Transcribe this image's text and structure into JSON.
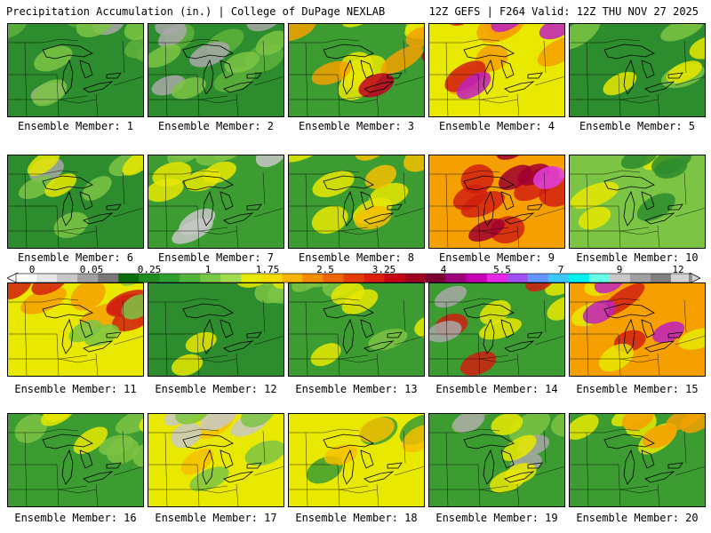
{
  "header": {
    "title": "Precipitation Accumulation (in.) | College of DuPage NEXLAB",
    "run_info": "12Z GEFS | F264 Valid: 12Z THU NOV 27 2025"
  },
  "panels": [
    {
      "caption": "Ensemble Member: 1",
      "base": "#2d8c2d",
      "spots": [
        [
          "#5fb03c",
          0.3
        ],
        [
          "#a8a8a8",
          0.15
        ],
        [
          "#7cc444",
          0.2
        ]
      ]
    },
    {
      "caption": "Ensemble Member: 2",
      "base": "#2d8c2d",
      "spots": [
        [
          "#5fb03c",
          0.3
        ],
        [
          "#a8a8a8",
          0.2
        ],
        [
          "#7cc444",
          0.2
        ]
      ]
    },
    {
      "caption": "Ensemble Member: 3",
      "base": "#3c9c32",
      "spots": [
        [
          "#e8e800",
          0.5
        ],
        [
          "#f5a000",
          0.3
        ],
        [
          "#c00020",
          0.2
        ]
      ]
    },
    {
      "caption": "Ensemble Member: 4",
      "base": "#e8e800",
      "spots": [
        [
          "#f5a000",
          0.4
        ],
        [
          "#d02010",
          0.3
        ],
        [
          "#c020c0",
          0.15
        ]
      ]
    },
    {
      "caption": "Ensemble Member: 5",
      "base": "#2d8c2d",
      "spots": [
        [
          "#7cc444",
          0.3
        ],
        [
          "#e8e800",
          0.15
        ]
      ]
    },
    {
      "caption": "Ensemble Member: 6",
      "base": "#2d8c2d",
      "spots": [
        [
          "#a8a8a8",
          0.2
        ],
        [
          "#7cc444",
          0.3
        ],
        [
          "#e8e800",
          0.1
        ]
      ]
    },
    {
      "caption": "Ensemble Member: 7",
      "base": "#3c9c32",
      "spots": [
        [
          "#c8c8c8",
          0.25
        ],
        [
          "#7cc444",
          0.3
        ],
        [
          "#e8e800",
          0.2
        ]
      ]
    },
    {
      "caption": "Ensemble Member: 8",
      "base": "#3c9c32",
      "spots": [
        [
          "#e8e800",
          0.4
        ],
        [
          "#f5c000",
          0.2
        ]
      ]
    },
    {
      "caption": "Ensemble Member: 9",
      "base": "#f5a000",
      "spots": [
        [
          "#d02010",
          0.4
        ],
        [
          "#a00030",
          0.25
        ],
        [
          "#e040e0",
          0.15
        ]
      ]
    },
    {
      "caption": "Ensemble Member: 10",
      "base": "#7cc444",
      "spots": [
        [
          "#e8e800",
          0.4
        ],
        [
          "#2d8c2d",
          0.2
        ]
      ]
    },
    {
      "caption": "Ensemble Member: 11",
      "base": "#e8e800",
      "spots": [
        [
          "#f5a000",
          0.4
        ],
        [
          "#d02010",
          0.3
        ],
        [
          "#7cc444",
          0.2
        ]
      ]
    },
    {
      "caption": "Ensemble Member: 12",
      "base": "#2d8c2d",
      "spots": [
        [
          "#7cc444",
          0.3
        ],
        [
          "#e8e800",
          0.15
        ]
      ]
    },
    {
      "caption": "Ensemble Member: 13",
      "base": "#3c9c32",
      "spots": [
        [
          "#7cc444",
          0.3
        ],
        [
          "#e8e800",
          0.2
        ]
      ]
    },
    {
      "caption": "Ensemble Member: 14",
      "base": "#3c9c32",
      "spots": [
        [
          "#e8e800",
          0.3
        ],
        [
          "#d02010",
          0.15
        ],
        [
          "#a8a8a8",
          0.1
        ]
      ]
    },
    {
      "caption": "Ensemble Member: 15",
      "base": "#f5a000",
      "spots": [
        [
          "#d02010",
          0.4
        ],
        [
          "#e8e800",
          0.2
        ],
        [
          "#c020c0",
          0.1
        ]
      ]
    },
    {
      "caption": "Ensemble Member: 16",
      "base": "#3c9c32",
      "spots": [
        [
          "#7cc444",
          0.3
        ],
        [
          "#e8e800",
          0.15
        ]
      ]
    },
    {
      "caption": "Ensemble Member: 17",
      "base": "#e8e800",
      "spots": [
        [
          "#f5c000",
          0.3
        ],
        [
          "#c8c8c8",
          0.2
        ],
        [
          "#7cc444",
          0.2
        ]
      ]
    },
    {
      "caption": "Ensemble Member: 18",
      "base": "#e8e800",
      "spots": [
        [
          "#3c9c32",
          0.3
        ],
        [
          "#f5c000",
          0.2
        ]
      ]
    },
    {
      "caption": "Ensemble Member: 19",
      "base": "#3c9c32",
      "spots": [
        [
          "#7cc444",
          0.3
        ],
        [
          "#a8a8a8",
          0.1
        ],
        [
          "#e8e800",
          0.15
        ]
      ]
    },
    {
      "caption": "Ensemble Member: 20",
      "base": "#3c9c32",
      "spots": [
        [
          "#e8e800",
          0.4
        ],
        [
          "#f5a000",
          0.15
        ]
      ]
    }
  ],
  "legend": {
    "labels": [
      "0",
      "0.05",
      "0.25",
      "1",
      "1.75",
      "2.5",
      "3.25",
      "4",
      "5.5",
      "7",
      "9",
      "12"
    ],
    "colors": [
      "#ffffff",
      "#e6e6e6",
      "#c8c8c8",
      "#a0a0a0",
      "#787878",
      "#0a6e0a",
      "#1e8c1e",
      "#2da02d",
      "#50b43c",
      "#78c846",
      "#a0dc50",
      "#e8e800",
      "#f5dc00",
      "#f5b400",
      "#f58c00",
      "#f06400",
      "#e63c00",
      "#dc1e0a",
      "#c80014",
      "#a0001e",
      "#780032",
      "#a0007a",
      "#c800b4",
      "#e628e6",
      "#a050f0",
      "#6496ff",
      "#3cc8ff",
      "#00f0f0",
      "#64ffe6",
      "#c8c8c8",
      "#a0a0a0",
      "#808080",
      "#d2d2d2"
    ]
  }
}
